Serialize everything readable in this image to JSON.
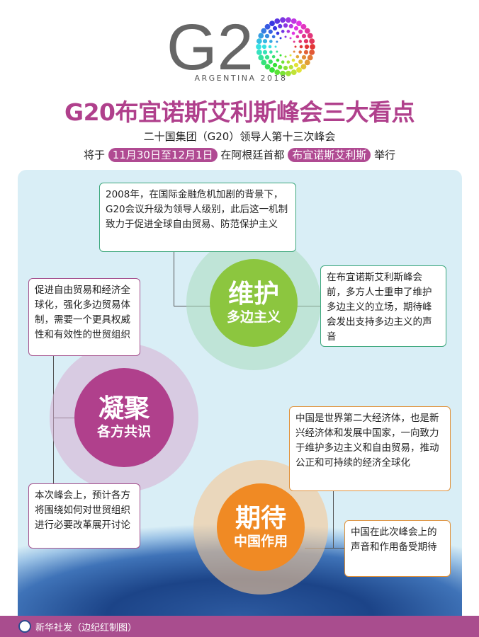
{
  "logo": {
    "text": "G20",
    "subtitle": "ARGENTINA 2018"
  },
  "title": "G20布宜诺斯艾利斯峰会三大看点",
  "subtitle": {
    "line1": "二十国集团（G20）领导人第十三次峰会",
    "prefix": "将于",
    "date": "11月30日至12月1日",
    "middle": "在阿根廷首都",
    "city": "布宜诺斯艾利斯",
    "suffix": "举行"
  },
  "sections": [
    {
      "title": "维护",
      "subtitle": "多边主义",
      "color": "#8cc63f",
      "boxes": [
        "2008年，在国际金融危机加剧的背景下，G20会议升级为领导人级别，此后这一机制致力于促进全球自由贸易、防范保护主义",
        "在布宜诺斯艾利斯峰会前，多方人士重申了维护多边主义的立场，期待峰会发出支持多边主义的声音"
      ]
    },
    {
      "title": "凝聚",
      "subtitle": "各方共识",
      "color": "#b0408c",
      "boxes": [
        "促进自由贸易和经济全球化，强化多边贸易体制，需要一个更具权威性和有效性的世贸组织",
        "本次峰会上，预计各方将围绕如何对世贸组织进行必要改革展开讨论"
      ]
    },
    {
      "title": "期待",
      "subtitle": "中国作用",
      "color": "#f08a24",
      "boxes": [
        "中国是世界第二大经济体，也是新兴经济体和发展中国家，一向致力于维护多边主义和自由贸易，推动公正和可持续的经济全球化",
        "中国在此次峰会上的声音和作用备受期待"
      ]
    }
  ],
  "footer": {
    "credit": "新华社发（边纪红制图）",
    "icon": "xinhua-logo-icon"
  }
}
